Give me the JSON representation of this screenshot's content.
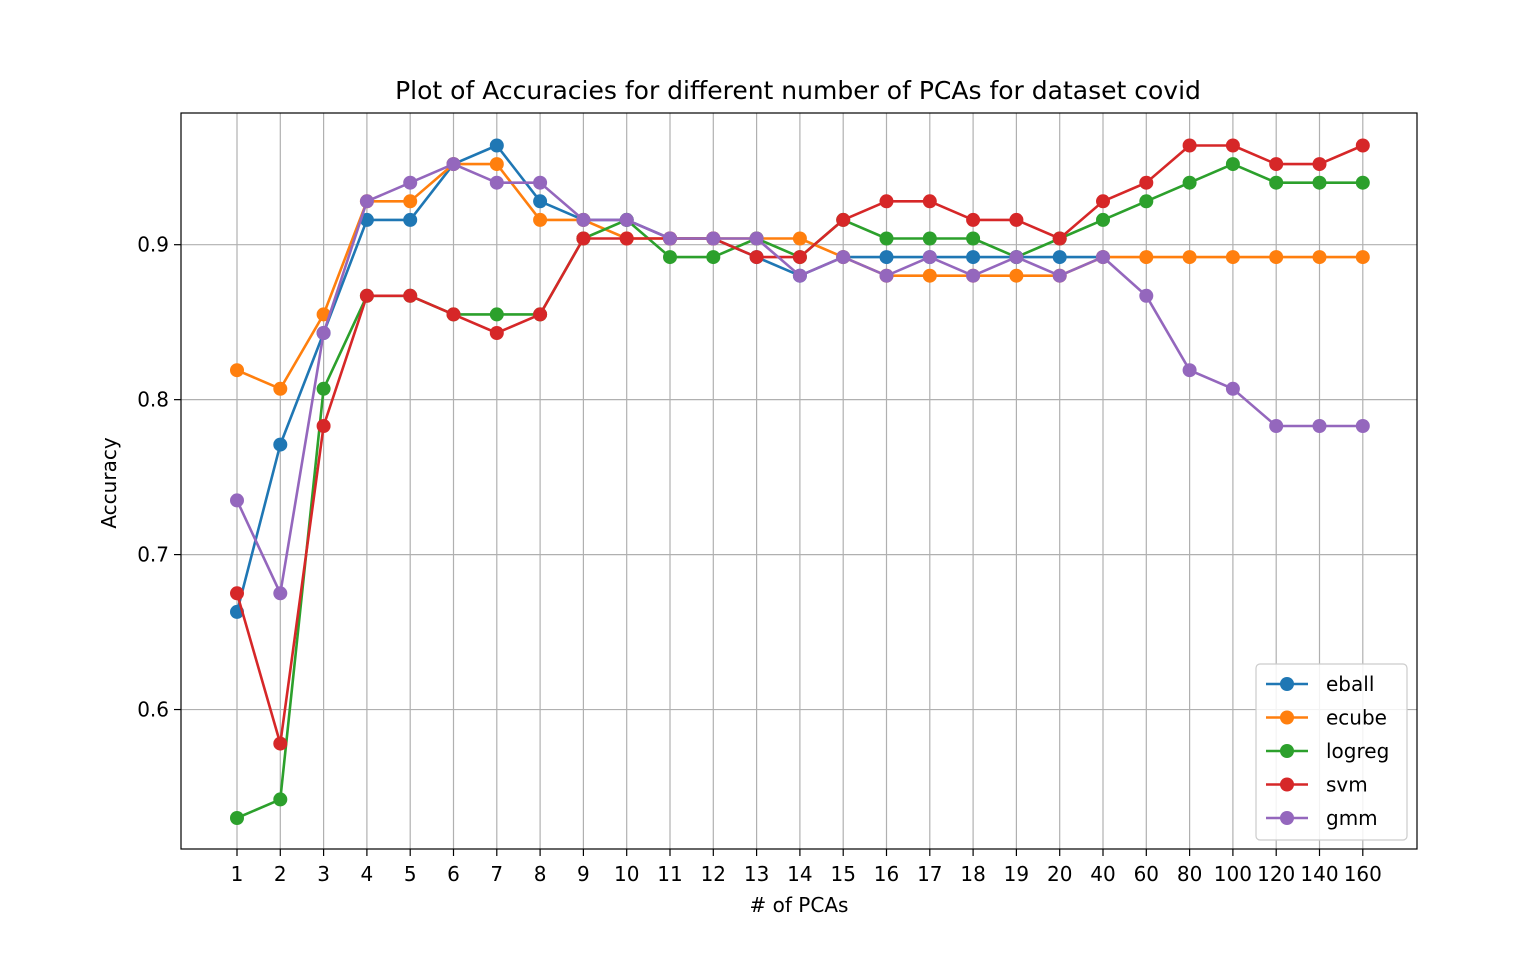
{
  "chart_data": {
    "type": "line",
    "title": "Plot of Accuracies for different number of PCAs for dataset covid",
    "xlabel": "# of PCAs",
    "ylabel": "Accuracy",
    "categories": [
      "1",
      "2",
      "3",
      "4",
      "5",
      "6",
      "7",
      "8",
      "9",
      "10",
      "11",
      "12",
      "13",
      "14",
      "15",
      "16",
      "17",
      "18",
      "19",
      "20",
      "40",
      "60",
      "80",
      "100",
      "120",
      "140",
      "160"
    ],
    "ylim": [
      0.51,
      0.985
    ],
    "yticks": [
      0.6,
      0.7,
      0.8,
      0.9
    ],
    "ytick_labels": [
      "0.6",
      "0.7",
      "0.8",
      "0.9"
    ],
    "grid": true,
    "legend_position": "lower-right",
    "series": [
      {
        "name": "eball",
        "color": "#1f77b4",
        "values": [
          0.663,
          0.771,
          0.843,
          0.916,
          0.916,
          0.952,
          0.964,
          0.928,
          0.916,
          0.916,
          0.904,
          0.904,
          0.892,
          0.88,
          0.892,
          0.892,
          0.892,
          0.892,
          0.892,
          0.892,
          0.892,
          null,
          null,
          null,
          null,
          null,
          null
        ]
      },
      {
        "name": "ecube",
        "color": "#ff7f0e",
        "values": [
          0.819,
          0.807,
          0.855,
          0.928,
          0.928,
          0.952,
          0.952,
          0.916,
          0.916,
          0.904,
          0.904,
          0.904,
          0.904,
          0.904,
          0.892,
          0.88,
          0.88,
          0.88,
          0.88,
          0.88,
          0.892,
          0.892,
          0.892,
          0.892,
          0.892,
          0.892,
          0.892
        ]
      },
      {
        "name": "logreg",
        "color": "#2ca02c",
        "values": [
          0.53,
          0.542,
          0.807,
          0.867,
          0.867,
          0.855,
          0.855,
          0.855,
          0.904,
          0.916,
          0.892,
          0.892,
          0.904,
          0.892,
          0.916,
          0.904,
          0.904,
          0.904,
          0.892,
          0.904,
          0.916,
          0.928,
          0.94,
          0.952,
          0.94,
          0.94,
          0.94
        ]
      },
      {
        "name": "svm",
        "color": "#d62728",
        "values": [
          0.675,
          0.578,
          0.783,
          0.867,
          0.867,
          0.855,
          0.843,
          0.855,
          0.904,
          0.904,
          0.904,
          0.904,
          0.892,
          0.892,
          0.916,
          0.928,
          0.928,
          0.916,
          0.916,
          0.904,
          0.928,
          0.94,
          0.964,
          0.964,
          0.952,
          0.952,
          0.964
        ]
      },
      {
        "name": "gmm",
        "color": "#9467bd",
        "values": [
          0.735,
          0.675,
          0.843,
          0.928,
          0.94,
          0.952,
          0.94,
          0.94,
          0.916,
          0.916,
          0.904,
          0.904,
          0.904,
          0.88,
          0.892,
          0.88,
          0.892,
          0.88,
          0.892,
          0.88,
          0.892,
          0.867,
          0.819,
          0.807,
          0.783,
          0.783,
          0.783
        ]
      }
    ]
  }
}
